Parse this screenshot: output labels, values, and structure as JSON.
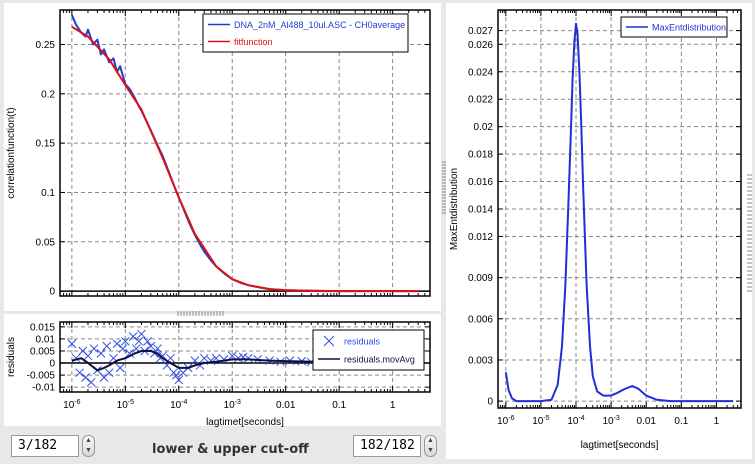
{
  "chart_data": [
    {
      "type": "line",
      "name": "correlation",
      "xlabel": "",
      "ylabel": "correlationfunction(t)",
      "xscale": "log",
      "xlim": [
        6e-07,
        5
      ],
      "ylim": [
        -0.005,
        0.285
      ],
      "yticks": [
        0,
        0.05,
        0.1,
        0.15,
        0.2,
        0.25
      ],
      "ytick_labels": [
        "0",
        "0.05",
        "0.1",
        "0.15",
        "0.2",
        "0.25"
      ],
      "grid": true,
      "legend": "top-right",
      "series": [
        {
          "name": "DNA_2nM_Al488_10ul.ASC - CH0average",
          "color": "#1f3fcf",
          "x": [
            1e-06,
            1.2e-06,
            1.5e-06,
            1.8e-06,
            2e-06,
            2.5e-06,
            3e-06,
            3.5e-06,
            4e-06,
            5e-06,
            6e-06,
            7e-06,
            8e-06,
            1e-05,
            1.2e-05,
            1.5e-05,
            1.8e-05,
            2e-05,
            2.5e-05,
            3e-05,
            4e-05,
            5e-05,
            6e-05,
            8e-05,
            0.0001,
            0.00013,
            0.00016,
            0.0002,
            0.00025,
            0.0003,
            0.0004,
            0.0005,
            0.0007,
            0.001,
            0.0015,
            0.002,
            0.003,
            0.005,
            0.01,
            0.02,
            0.05,
            0.1,
            0.3,
            1,
            3
          ],
          "y": [
            0.28,
            0.27,
            0.262,
            0.258,
            0.265,
            0.25,
            0.255,
            0.24,
            0.245,
            0.232,
            0.236,
            0.222,
            0.228,
            0.21,
            0.205,
            0.196,
            0.187,
            0.183,
            0.172,
            0.163,
            0.148,
            0.137,
            0.126,
            0.108,
            0.095,
            0.08,
            0.068,
            0.057,
            0.047,
            0.04,
            0.031,
            0.025,
            0.018,
            0.012,
            0.008,
            0.006,
            0.004,
            0.002,
            0.001,
            0.0005,
            0,
            0,
            0,
            0,
            0
          ]
        },
        {
          "name": "fitfunction",
          "color": "#e01010",
          "x": [
            1e-06,
            2e-06,
            5e-06,
            1e-05,
            2e-05,
            5e-05,
            0.0001,
            0.0002,
            0.0005,
            0.001,
            0.002,
            0.005,
            0.01,
            0.1,
            1,
            3
          ],
          "y": [
            0.268,
            0.258,
            0.235,
            0.209,
            0.184,
            0.135,
            0.095,
            0.058,
            0.025,
            0.012,
            0.006,
            0.002,
            0.0008,
            0,
            0,
            0
          ]
        }
      ]
    },
    {
      "type": "scatter",
      "name": "residuals",
      "xlabel": "lagtimet[seconds]",
      "ylabel": "residuals",
      "xscale": "log",
      "xlim": [
        6e-07,
        5
      ],
      "ylim": [
        -0.012,
        0.017
      ],
      "yticks": [
        -0.01,
        -0.005,
        0,
        0.005,
        0.01,
        0.015
      ],
      "ytick_labels": [
        "-0.01",
        "-0.005",
        "0",
        "0.005",
        "0.01",
        "0.015"
      ],
      "xticks": [
        1e-06,
        1e-05,
        0.0001,
        0.001,
        0.01,
        0.1,
        1
      ],
      "xtick_labels": [
        "10-6",
        "10-5",
        "10-4",
        "10-3",
        "0.01",
        "0.1",
        "1"
      ],
      "grid": true,
      "legend": "right",
      "series": [
        {
          "name": "residuals",
          "color": "#2e4de6",
          "marker": "x",
          "x": [
            1e-06,
            1.2e-06,
            1.4e-06,
            1.6e-06,
            1.8e-06,
            2e-06,
            2.3e-06,
            2.6e-06,
            3e-06,
            3.5e-06,
            4e-06,
            4.5e-06,
            5e-06,
            6e-06,
            7e-06,
            8e-06,
            9e-06,
            1e-05,
            1.2e-05,
            1.4e-05,
            1.6e-05,
            1.8e-05,
            2e-05,
            2.3e-05,
            2.6e-05,
            3e-05,
            3.5e-05,
            4e-05,
            4.5e-05,
            5e-05,
            6e-05,
            7e-05,
            8e-05,
            9e-05,
            0.0001,
            0.00012,
            0.00015,
            0.0002,
            0.00025,
            0.0003,
            0.0004,
            0.0005,
            0.0007,
            0.001,
            0.0013,
            0.0016,
            0.002,
            0.003,
            0.005,
            0.008,
            0.012,
            0.02,
            0.03,
            0.05,
            0.08,
            0.12,
            0.2,
            0.3,
            0.5,
            0.8,
            1.2,
            2,
            3
          ],
          "y": [
            0.008,
            0.002,
            -0.004,
            0.005,
            -0.006,
            0.003,
            -0.008,
            0.006,
            -0.003,
            0.004,
            -0.006,
            0.007,
            -0.004,
            0.002,
            0.008,
            -0.002,
            0.006,
            0.009,
            0.004,
            0.011,
            0.006,
            0.009,
            0.012,
            0.005,
            0.009,
            0.007,
            0.004,
            0.006,
            0.002,
            0.003,
            -0.001,
            0.002,
            -0.004,
            -0.005,
            -0.007,
            -0.004,
            -0.002,
            0.001,
            -0.001,
            0.002,
            0.001,
            0.002,
            0.0015,
            0.003,
            0.002,
            0.0025,
            0.002,
            0.0015,
            0.001,
            0.0005,
            0.001,
            0.0008,
            0.0004,
            0.0006,
            0.0003,
            0.0004,
            0.0002,
            0.0003,
            0.0001,
            0.0002,
            0.0001,
            0.0001,
            0
          ]
        },
        {
          "name": "residuals.movAvg",
          "color": "#101040",
          "x": [
            1e-06,
            1.5e-06,
            2e-06,
            3e-06,
            4e-06,
            5e-06,
            7e-06,
            1e-05,
            1.5e-05,
            2e-05,
            3e-05,
            4e-05,
            5e-05,
            7e-05,
            0.0001,
            0.00015,
            0.0002,
            0.0003,
            0.0005,
            0.001,
            0.002,
            0.005,
            0.01,
            0.1,
            1,
            3
          ],
          "y": [
            0.001,
            0.002,
            0,
            -0.003,
            -0.002,
            -0.001,
            0.001,
            0.002,
            0.004,
            0.005,
            0.005,
            0.004,
            0.002,
            0,
            -0.002,
            -0.002,
            -0.001,
            0,
            0.0005,
            0.0015,
            0.0015,
            0.001,
            0.0008,
            0.0003,
            0.0001,
            0
          ]
        }
      ]
    },
    {
      "type": "line",
      "name": "maxent",
      "xlabel": "lagtimet[seconds]",
      "ylabel": "MaxEntdistribution",
      "xscale": "log",
      "xlim": [
        6e-07,
        5
      ],
      "ylim": [
        -0.0005,
        0.0285
      ],
      "yticks": [
        0,
        0.003,
        0.006,
        0.009,
        0.012,
        0.014,
        0.016,
        0.018,
        0.02,
        0.022,
        0.024,
        0.026,
        0.027
      ],
      "ytick_labels": [
        "0",
        "0.003",
        "0.006",
        "0.009",
        "0.012",
        "0.014",
        "0.016",
        "0.018",
        "0.02",
        "0.022",
        "0.024",
        "0.026",
        "0.027"
      ],
      "xticks": [
        1e-06,
        1e-05,
        0.0001,
        0.001,
        0.01,
        0.1,
        1
      ],
      "xtick_labels": [
        "10-6",
        "10-5",
        "10-4",
        "10-3",
        "0.01",
        "0.1",
        "1"
      ],
      "grid": true,
      "legend": "top-right",
      "series": [
        {
          "name": "MaxEntdistribution",
          "color": "#1f2fd8",
          "x": [
            1e-06,
            1.2e-06,
            1.5e-06,
            2e-06,
            3e-06,
            5e-06,
            1e-05,
            2e-05,
            3e-05,
            4e-05,
            5e-05,
            6e-05,
            7e-05,
            8e-05,
            9e-05,
            0.0001,
            0.00011,
            0.000125,
            0.00014,
            0.00016,
            0.0002,
            0.00025,
            0.0003,
            0.0004,
            0.0006,
            0.001,
            0.0015,
            0.0025,
            0.004,
            0.006,
            0.01,
            0.02,
            0.05,
            0.2,
            1,
            3
          ],
          "y": [
            0.0021,
            0.0008,
            0.0002,
            0,
            0,
            0,
            0,
            0.0001,
            0.0012,
            0.004,
            0.0085,
            0.014,
            0.019,
            0.0235,
            0.0262,
            0.0275,
            0.0268,
            0.024,
            0.0205,
            0.0155,
            0.0085,
            0.004,
            0.0018,
            0.0007,
            0.0004,
            0.0004,
            0.0006,
            0.0009,
            0.0011,
            0.0009,
            0.0004,
            0.0001,
            0,
            0,
            0,
            0
          ]
        }
      ]
    }
  ],
  "controls": {
    "lower_cutoff": "3/182",
    "upper_cutoff": "182/182",
    "cutoff_label": "lower & upper cut-off"
  }
}
